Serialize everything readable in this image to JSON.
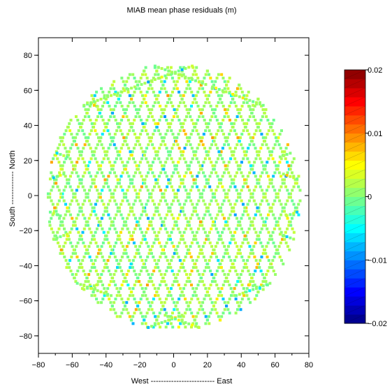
{
  "chart_data": {
    "type": "scatter",
    "title": "MIAB   mean phase residuals (m)",
    "xlabel": "West ------------------------- East",
    "ylabel": "South ------------- North",
    "xlim": [
      -80,
      80
    ],
    "ylim": [
      -90,
      90
    ],
    "x_ticks": [
      -80,
      -60,
      -40,
      -20,
      0,
      20,
      40,
      60,
      80
    ],
    "y_ticks": [
      -80,
      -60,
      -40,
      -20,
      0,
      20,
      40,
      60,
      80
    ],
    "grid": false,
    "colorbar": {
      "range": [
        -0.02,
        0.02
      ],
      "ticks": [
        0.02,
        0.01,
        0,
        -0.01,
        -0.02
      ],
      "tick_labels": [
        "0.02",
        "0.01",
        "0",
        "−0.01",
        "−0.02"
      ],
      "levels": 28,
      "colormap": "jet"
    },
    "footprint": {
      "shape": "circular sky-track pattern",
      "x_extent": [
        -75,
        75
      ],
      "y_extent": [
        -77,
        75
      ],
      "typical_value": 0.001,
      "value_range": [
        -0.01,
        0.01
      ]
    }
  }
}
